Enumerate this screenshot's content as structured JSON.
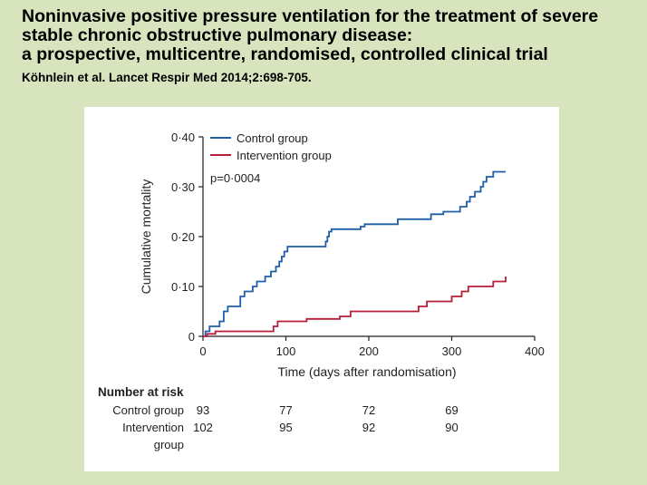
{
  "slide": {
    "title_lines": [
      "Noninvasive positive pressure ventilation for the treatment of severe",
      "stable chronic obstructive pulmonary disease:",
      "a prospective, multicentre, randomised, controlled clinical trial"
    ],
    "citation": "Köhnlein et al. Lancet Respir Med 2014;2:698-705."
  },
  "chart_data": {
    "type": "line",
    "title": "",
    "xlabel": "Time (days after randomisation)",
    "ylabel": "Cumulative mortality",
    "xlim": [
      0,
      400
    ],
    "ylim": [
      0,
      0.4
    ],
    "x_ticks": [
      0,
      100,
      200,
      300,
      400
    ],
    "x_tick_labels": [
      "0",
      "100",
      "200",
      "300",
      "400"
    ],
    "y_ticks": [
      0,
      0.1,
      0.2,
      0.3,
      0.4
    ],
    "y_tick_labels": [
      "0",
      "0·10",
      "0·20",
      "0·30",
      "0·40"
    ],
    "grid": false,
    "legend_position": "top-left",
    "annotation": "p=0·0004",
    "series": [
      {
        "name": "Control group",
        "color": "#1f5fa8",
        "step": true,
        "x": [
          0,
          3,
          8,
          20,
          25,
          30,
          45,
          50,
          60,
          65,
          75,
          82,
          88,
          92,
          95,
          98,
          102,
          148,
          150,
          152,
          155,
          190,
          195,
          235,
          275,
          290,
          310,
          318,
          322,
          328,
          335,
          338,
          342,
          350,
          365
        ],
        "y": [
          0,
          0.01,
          0.02,
          0.03,
          0.05,
          0.06,
          0.08,
          0.09,
          0.1,
          0.11,
          0.12,
          0.13,
          0.14,
          0.15,
          0.16,
          0.17,
          0.18,
          0.19,
          0.2,
          0.21,
          0.215,
          0.22,
          0.225,
          0.235,
          0.245,
          0.25,
          0.26,
          0.27,
          0.28,
          0.29,
          0.3,
          0.31,
          0.32,
          0.33,
          0.33
        ]
      },
      {
        "name": "Intervention group",
        "color": "#b51f3a",
        "step": true,
        "x": [
          0,
          5,
          15,
          85,
          90,
          125,
          165,
          178,
          260,
          270,
          300,
          312,
          320,
          350,
          365
        ],
        "y": [
          0,
          0.005,
          0.01,
          0.02,
          0.03,
          0.035,
          0.04,
          0.05,
          0.06,
          0.07,
          0.08,
          0.09,
          0.1,
          0.11,
          0.12
        ]
      }
    ],
    "number_at_risk": {
      "heading": "Number at risk",
      "rows": [
        {
          "label": "Control group",
          "label_lines": [
            "Control group"
          ],
          "values": [
            "93",
            "77",
            "72",
            "69"
          ]
        },
        {
          "label": "Intervention group",
          "label_lines": [
            "Intervention",
            "group"
          ],
          "values": [
            "102",
            "95",
            "92",
            "90"
          ]
        }
      ],
      "at_x": [
        0,
        100,
        200,
        300
      ]
    }
  }
}
